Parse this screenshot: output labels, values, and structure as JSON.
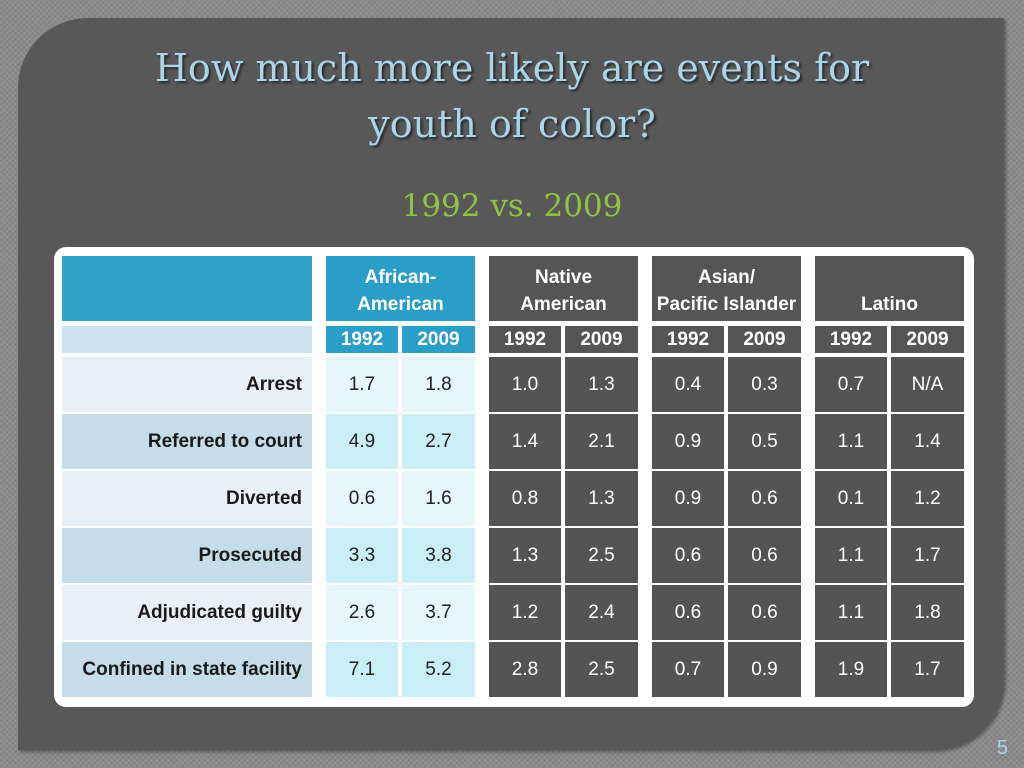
{
  "slide": {
    "title_line1": "How much more likely are events for",
    "title_line2": "youth of color?",
    "subtitle": "1992 vs. 2009",
    "page_number": "5"
  },
  "table": {
    "groups": [
      {
        "line1": "African-",
        "line2": "American"
      },
      {
        "line1": "Native",
        "line2": "American"
      },
      {
        "line1": "Asian/",
        "line2": "Pacific Islander"
      },
      {
        "line1": "",
        "line2": "Latino"
      }
    ],
    "years": [
      "1992",
      "2009"
    ],
    "rows": [
      {
        "label": "Arrest",
        "values": [
          "1.7",
          "1.8",
          "1.0",
          "1.3",
          "0.4",
          "0.3",
          "0.7",
          "N/A"
        ]
      },
      {
        "label": "Referred to court",
        "values": [
          "4.9",
          "2.7",
          "1.4",
          "2.1",
          "0.9",
          "0.5",
          "1.1",
          "1.4"
        ]
      },
      {
        "label": "Diverted",
        "values": [
          "0.6",
          "1.6",
          "0.8",
          "1.3",
          "0.9",
          "0.6",
          "0.1",
          "1.2"
        ]
      },
      {
        "label": "Prosecuted",
        "values": [
          "3.3",
          "3.8",
          "1.3",
          "2.5",
          "0.6",
          "0.6",
          "1.1",
          "1.7"
        ]
      },
      {
        "label": "Adjudicated guilty",
        "values": [
          "2.6",
          "3.7",
          "1.2",
          "2.4",
          "0.6",
          "0.6",
          "1.1",
          "1.8"
        ]
      },
      {
        "label": "Confined in state facility",
        "values": [
          "7.1",
          "5.2",
          "2.8",
          "2.5",
          "0.7",
          "0.9",
          "1.9",
          "1.7"
        ]
      }
    ]
  },
  "colors": {
    "title": "#a9d5e9",
    "subtitle": "#8fc441",
    "header_blue": "#2a9ec6",
    "header_dark": "#555555"
  }
}
